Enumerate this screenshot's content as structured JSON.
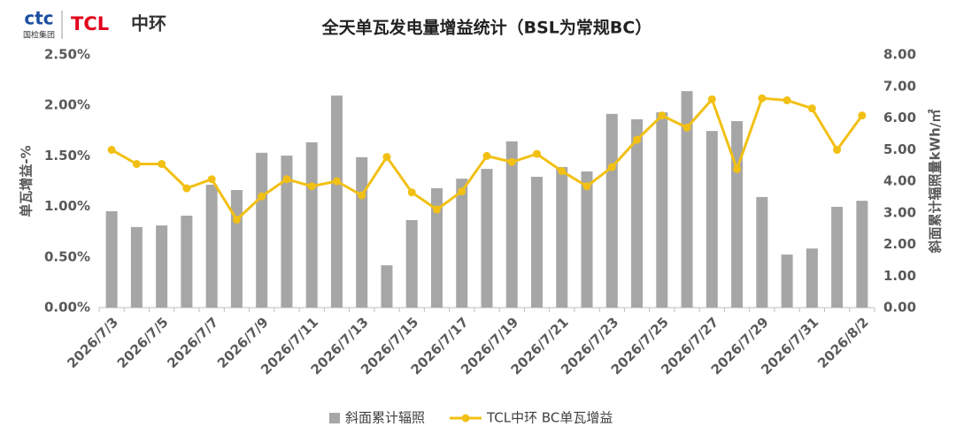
{
  "logo": {
    "brand": "ctc",
    "group": "国检集团",
    "company": "TCL",
    "company_cn": "中环"
  },
  "chart_data": {
    "type": "combo",
    "title": "全天单瓦发电量增益统计（BSL为常规BC）",
    "y_label": "单瓦增益-%",
    "y2_label": "斜面累计辐照量kWh/㎡",
    "categories": [
      "2026/7/3",
      null,
      "2026/7/5",
      null,
      "2026/7/7",
      null,
      "2026/7/9",
      null,
      "2026/7/11",
      null,
      "2026/7/13",
      null,
      "2026/7/15",
      null,
      "2026/7/17",
      null,
      "2026/7/19",
      null,
      "2026/7/21",
      null,
      "2026/7/23",
      null,
      "2026/7/25",
      null,
      "2026/7/27",
      null,
      "2026/7/29",
      null,
      "2026/7/31",
      null,
      "2026/8/2"
    ],
    "series": [
      {
        "name": "斜面累计辐照",
        "type": "bar",
        "axis": "y2",
        "color": "#a6a6a6",
        "values": [
          3.05,
          2.55,
          2.6,
          2.91,
          3.89,
          3.72,
          4.9,
          4.81,
          5.23,
          6.71,
          4.76,
          1.34,
          2.77,
          3.78,
          4.08,
          4.39,
          5.26,
          4.14,
          4.45,
          4.31,
          6.13,
          5.96,
          6.18,
          6.85,
          5.59,
          5.9,
          3.5,
          1.68,
          1.87,
          3.19,
          3.38
        ]
      },
      {
        "name": "TCL中环 BC单瓦增益",
        "type": "line",
        "color": "#f2c014",
        "values": [
          1.56,
          1.42,
          1.42,
          1.18,
          1.27,
          0.87,
          1.1,
          1.27,
          1.2,
          1.25,
          1.11,
          1.49,
          1.14,
          0.97,
          1.15,
          1.5,
          1.44,
          1.52,
          1.35,
          1.2,
          1.39,
          1.66,
          1.9,
          1.78,
          2.06,
          1.37,
          2.07,
          2.05,
          1.97,
          1.56,
          1.9
        ]
      }
    ],
    "ylim": [
      0,
      2.5
    ],
    "yticks": [
      {
        "value": 0,
        "label": "0.00%"
      },
      {
        "value": 0.5,
        "label": "0.50%"
      },
      {
        "value": 1,
        "label": "1.00%"
      },
      {
        "value": 1.5,
        "label": "1.50%"
      },
      {
        "value": 2,
        "label": "2.00%"
      },
      {
        "value": 2.5,
        "label": "2.50%"
      }
    ],
    "y2lim": [
      0,
      8
    ],
    "y2ticks": [
      {
        "value": 0,
        "label": "0.00"
      },
      {
        "value": 1,
        "label": "1.00"
      },
      {
        "value": 2,
        "label": "2.00"
      },
      {
        "value": 3,
        "label": "3.00"
      },
      {
        "value": 4,
        "label": "4.00"
      },
      {
        "value": 5,
        "label": "5.00"
      },
      {
        "value": 6,
        "label": "6.00"
      },
      {
        "value": 7,
        "label": "7.00"
      },
      {
        "value": 8,
        "label": "8.00"
      }
    ],
    "grid": false,
    "legend": "bottom"
  }
}
